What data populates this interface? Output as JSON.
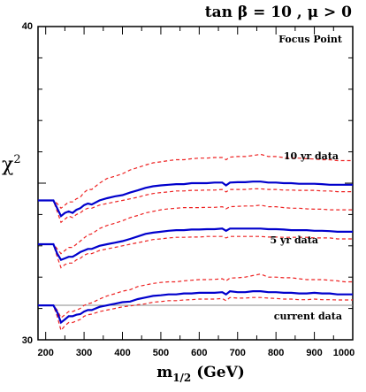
{
  "chart_data": {
    "type": "line",
    "title": "tan β = 10 ,  μ > 0",
    "subtitle": "Focus Point",
    "xlabel": "m",
    "xlabel_sub": "1/2",
    "xlabel_unit": " (GeV)",
    "ylabel": "χ",
    "ylabel_sup": "2",
    "xlim": [
      180,
      1000
    ],
    "ylim": [
      30,
      40
    ],
    "xticks": [
      "200",
      "300",
      "400",
      "500",
      "600",
      "700",
      "800",
      "900",
      "1000"
    ],
    "yticks": [
      "30",
      "40"
    ],
    "reference_line": 31.1,
    "colors": {
      "central": "#0000cc",
      "band": "#ee2222",
      "reference": "#888888"
    },
    "series": [
      {
        "name": "current data",
        "x": [
          180,
          200,
          220,
          230,
          240,
          250,
          260,
          270,
          280,
          290,
          300,
          310,
          320,
          340,
          360,
          380,
          400,
          420,
          440,
          460,
          480,
          500,
          520,
          540,
          560,
          580,
          600,
          620,
          640,
          660,
          670,
          680,
          700,
          720,
          740,
          760,
          780,
          800,
          820,
          840,
          860,
          880,
          900,
          920,
          940,
          960,
          980,
          1000
        ],
        "values": [
          31.1,
          31.1,
          31.1,
          30.88,
          30.55,
          30.65,
          30.75,
          30.75,
          30.8,
          30.82,
          30.9,
          30.95,
          30.95,
          31.05,
          31.1,
          31.15,
          31.2,
          31.22,
          31.3,
          31.35,
          31.4,
          31.42,
          31.45,
          31.45,
          31.48,
          31.48,
          31.5,
          31.5,
          31.5,
          31.52,
          31.45,
          31.55,
          31.52,
          31.52,
          31.55,
          31.55,
          31.52,
          31.52,
          31.5,
          31.5,
          31.48,
          31.48,
          31.5,
          31.48,
          31.48,
          31.45,
          31.45,
          31.45
        ],
        "upper": [
          31.1,
          31.1,
          31.1,
          30.95,
          30.7,
          30.8,
          30.9,
          30.9,
          30.95,
          31.0,
          31.1,
          31.15,
          31.18,
          31.3,
          31.4,
          31.47,
          31.55,
          31.6,
          31.7,
          31.75,
          31.8,
          31.83,
          31.85,
          31.85,
          31.88,
          31.9,
          31.92,
          31.92,
          31.93,
          31.95,
          31.88,
          31.97,
          31.98,
          32.0,
          32.05,
          32.1,
          32.0,
          32.0,
          31.98,
          31.98,
          31.95,
          31.92,
          31.92,
          31.92,
          31.9,
          31.88,
          31.85,
          31.85
        ],
        "lower": [
          31.1,
          31.1,
          31.1,
          30.75,
          30.3,
          30.45,
          30.55,
          30.55,
          30.6,
          30.65,
          30.75,
          30.8,
          30.82,
          30.9,
          30.95,
          31.0,
          31.05,
          31.08,
          31.12,
          31.15,
          31.2,
          31.22,
          31.25,
          31.25,
          31.27,
          31.28,
          31.3,
          31.3,
          31.3,
          31.32,
          31.25,
          31.35,
          31.33,
          31.33,
          31.35,
          31.35,
          31.33,
          31.32,
          31.3,
          31.3,
          31.28,
          31.28,
          31.3,
          31.28,
          31.28,
          31.27,
          31.27,
          31.27
        ]
      },
      {
        "name": "5 yr data",
        "x": [
          180,
          200,
          220,
          230,
          240,
          250,
          260,
          270,
          280,
          290,
          300,
          310,
          320,
          340,
          360,
          380,
          400,
          420,
          440,
          460,
          480,
          500,
          520,
          540,
          560,
          580,
          600,
          620,
          640,
          660,
          670,
          680,
          700,
          720,
          740,
          760,
          780,
          800,
          820,
          840,
          860,
          880,
          900,
          920,
          940,
          960,
          980,
          1000
        ],
        "values": [
          33.05,
          33.05,
          33.05,
          32.75,
          32.55,
          32.6,
          32.65,
          32.65,
          32.72,
          32.8,
          32.85,
          32.9,
          32.9,
          33.0,
          33.05,
          33.1,
          33.15,
          33.22,
          33.3,
          33.38,
          33.42,
          33.45,
          33.48,
          33.5,
          33.5,
          33.52,
          33.52,
          33.53,
          33.53,
          33.55,
          33.48,
          33.55,
          33.55,
          33.55,
          33.55,
          33.55,
          33.53,
          33.53,
          33.52,
          33.5,
          33.5,
          33.5,
          33.48,
          33.48,
          33.47,
          33.45,
          33.45,
          33.45
        ],
        "upper": [
          33.05,
          33.05,
          33.05,
          32.9,
          32.75,
          32.85,
          32.95,
          32.95,
          33.05,
          33.15,
          33.25,
          33.35,
          33.38,
          33.55,
          33.65,
          33.72,
          33.8,
          33.9,
          33.97,
          34.05,
          34.1,
          34.15,
          34.18,
          34.2,
          34.22,
          34.22,
          34.22,
          34.23,
          34.23,
          34.25,
          34.18,
          34.25,
          34.26,
          34.27,
          34.27,
          34.3,
          34.25,
          34.25,
          34.22,
          34.2,
          34.2,
          34.18,
          34.17,
          34.17,
          34.15,
          34.15,
          34.15,
          34.15
        ],
        "lower": [
          33.05,
          33.05,
          33.05,
          32.65,
          32.3,
          32.4,
          32.45,
          32.45,
          32.55,
          32.6,
          32.7,
          32.75,
          32.75,
          32.85,
          32.9,
          32.95,
          33.0,
          33.05,
          33.1,
          33.15,
          33.2,
          33.22,
          33.25,
          33.27,
          33.27,
          33.28,
          33.28,
          33.3,
          33.3,
          33.3,
          33.25,
          33.3,
          33.3,
          33.3,
          33.3,
          33.3,
          33.28,
          33.28,
          33.27,
          33.27,
          33.27,
          33.27,
          33.25,
          33.25,
          33.25,
          33.22,
          33.22,
          33.22
        ]
      },
      {
        "name": "10 yr data",
        "x": [
          180,
          200,
          220,
          230,
          240,
          250,
          260,
          270,
          280,
          290,
          300,
          310,
          320,
          340,
          360,
          380,
          400,
          420,
          440,
          460,
          480,
          500,
          520,
          540,
          560,
          580,
          600,
          620,
          640,
          660,
          670,
          680,
          700,
          720,
          740,
          760,
          780,
          800,
          820,
          840,
          860,
          880,
          900,
          920,
          940,
          960,
          980,
          1000
        ],
        "values": [
          34.45,
          34.45,
          34.45,
          34.2,
          33.95,
          34.05,
          34.1,
          34.05,
          34.15,
          34.2,
          34.3,
          34.35,
          34.32,
          34.45,
          34.52,
          34.58,
          34.62,
          34.7,
          34.77,
          34.85,
          34.9,
          34.93,
          34.95,
          34.97,
          34.97,
          35.0,
          35.0,
          35.0,
          35.02,
          35.02,
          34.93,
          35.02,
          35.03,
          35.03,
          35.05,
          35.05,
          35.02,
          35.02,
          35.0,
          35.0,
          34.98,
          34.98,
          34.98,
          34.97,
          34.95,
          34.95,
          34.95,
          34.95
        ],
        "upper": [
          34.45,
          34.45,
          34.45,
          34.35,
          34.2,
          34.3,
          34.4,
          34.4,
          34.5,
          34.55,
          34.7,
          34.8,
          34.8,
          35.0,
          35.15,
          35.22,
          35.3,
          35.42,
          35.5,
          35.58,
          35.65,
          35.68,
          35.72,
          35.75,
          35.75,
          35.78,
          35.8,
          35.8,
          35.82,
          35.82,
          35.75,
          35.83,
          35.85,
          35.85,
          35.88,
          35.92,
          35.85,
          35.85,
          35.82,
          35.8,
          35.8,
          35.78,
          35.77,
          35.75,
          35.75,
          35.72,
          35.72,
          35.72
        ],
        "lower": [
          34.45,
          34.45,
          34.45,
          34.1,
          33.75,
          33.85,
          33.95,
          33.9,
          34.0,
          34.05,
          34.15,
          34.2,
          34.2,
          34.3,
          34.35,
          34.4,
          34.45,
          34.5,
          34.55,
          34.62,
          34.67,
          34.7,
          34.72,
          34.75,
          34.75,
          34.77,
          34.77,
          34.78,
          34.78,
          34.8,
          34.72,
          34.8,
          34.8,
          34.8,
          34.82,
          34.82,
          34.8,
          34.8,
          34.78,
          34.78,
          34.77,
          34.77,
          34.77,
          34.75,
          34.75,
          34.73,
          34.73,
          34.73
        ]
      }
    ],
    "annotations": {
      "current": "current data",
      "five": "5 yr data",
      "ten": "10 yr data"
    }
  }
}
